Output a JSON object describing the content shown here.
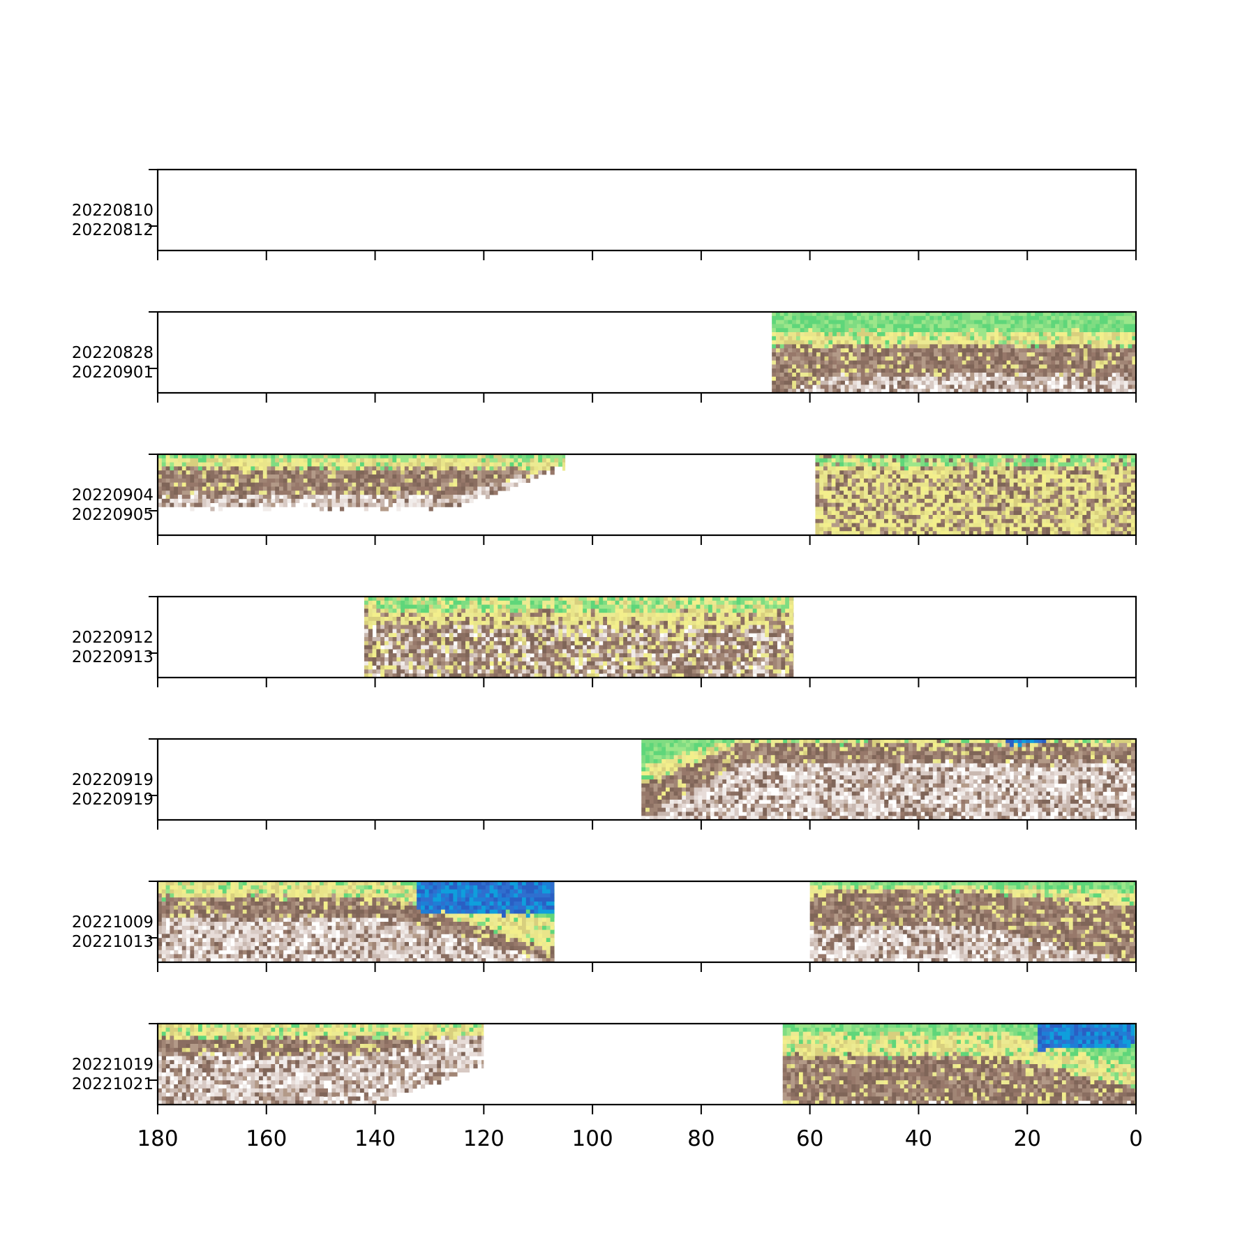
{
  "chart_data": {
    "type": "heatmap",
    "title": "",
    "xlabel": "",
    "ylabel": "",
    "xlim": [
      180,
      0
    ],
    "x_ticks": [
      180,
      160,
      140,
      120,
      100,
      80,
      60,
      40,
      20,
      0
    ],
    "x_tick_labels": [
      "180",
      "160",
      "140",
      "120",
      "100",
      "80",
      "60",
      "40",
      "20",
      "0"
    ],
    "grid": false,
    "colormap": "terrain",
    "panels": [
      {
        "id": "p1",
        "date_labels": [
          "20220810",
          "20220812"
        ],
        "segments": []
      },
      {
        "id": "p2",
        "date_labels": [
          "20220828",
          "20220901"
        ],
        "segments": [
          {
            "x_start": 67,
            "x_end": 0,
            "layers": {
              "green_top": 0.25,
              "yellow_to": 0.42,
              "brown_to": 0.78,
              "fade_to": 1.0
            },
            "ramp": {
              "x_start": 67,
              "x_end": 55,
              "brown_extra": 0.28,
              "fade_extra": 0.2
            },
            "blue": []
          }
        ]
      },
      {
        "id": "p3",
        "date_labels": [
          "20220904",
          "20220905"
        ],
        "segments": [
          {
            "x_start": 180,
            "x_end": 105,
            "layers": {
              "green_top": 0.04,
              "yellow_to": 0.18,
              "brown_to": 0.5,
              "fade_to": 0.66
            },
            "ramp": {
              "x_start": 125,
              "x_end": 105,
              "brown_extra": -0.38,
              "fade_extra": -0.5
            },
            "blue": []
          },
          {
            "x_start": 59,
            "x_end": 0,
            "layers": {
              "green_top": 0.15,
              "yellow_to": 1.0,
              "brown_to": 1.0,
              "fade_to": 1.0
            },
            "mix": "yellow-brown",
            "blue": []
          }
        ]
      },
      {
        "id": "p4",
        "date_labels": [
          "20220912",
          "20220913"
        ],
        "segments": [
          {
            "x_start": 142,
            "x_end": 63,
            "layers": {
              "green_top": 0.18,
              "yellow_to": 0.36,
              "brown_to": 1.0,
              "fade_to": 1.0
            },
            "mix": "brown-white",
            "blue": []
          }
        ]
      },
      {
        "id": "p5",
        "date_labels": [
          "20220919",
          "20220919"
        ],
        "segments": [
          {
            "x_start": 91,
            "x_end": 0,
            "layers": {
              "green_top": 0.33,
              "yellow_to": 0.6,
              "brown_to": 1.0,
              "fade_to": 1.0
            },
            "ramp": {
              "x_start": 91,
              "x_end": 73,
              "green_top": 0.0,
              "yellow_to": 0.05,
              "brown_to": 0.3,
              "fade_to": 1.0
            },
            "blue": [
              {
                "x_start": 24,
                "x_end": 16,
                "depth": 0.05
              }
            ]
          }
        ]
      },
      {
        "id": "p6",
        "date_labels": [
          "20221009",
          "20221013"
        ],
        "segments": [
          {
            "x_start": 180,
            "x_end": 107,
            "layers": {
              "green_top": 0.0,
              "yellow_to": 0.2,
              "brown_to": 0.45,
              "fade_to": 1.0
            },
            "ramp": {
              "x_start": 138,
              "x_end": 107,
              "green_top": 0.5,
              "yellow_to": 0.85,
              "brown_to": 1.0,
              "fade_to": 1.0
            },
            "blue": [
              {
                "x_start": 132,
                "x_end": 107,
                "depth": 0.4
              }
            ]
          },
          {
            "x_start": 60,
            "x_end": 0,
            "layers": {
              "green_top": 0.06,
              "yellow_to": 0.12,
              "brown_to": 0.55,
              "fade_to": 1.0
            },
            "ramp": {
              "x_start": 30,
              "x_end": 0,
              "green_top": 0.12,
              "yellow_to": 0.3,
              "brown_to": 1.0,
              "fade_to": 1.0
            },
            "blue": []
          }
        ]
      },
      {
        "id": "p7",
        "date_labels": [
          "20221019",
          "20221021"
        ],
        "segments": [
          {
            "x_start": 180,
            "x_end": 120,
            "layers": {
              "green_top": 0.0,
              "yellow_to": 0.18,
              "brown_to": 0.38,
              "fade_to": 1.0
            },
            "ramp": {
              "x_start": 140,
              "x_end": 120,
              "brown_extra": -0.3,
              "fade_extra": -0.5
            },
            "blue": []
          },
          {
            "x_start": 65,
            "x_end": 0,
            "layers": {
              "green_top": 0.12,
              "yellow_to": 0.4,
              "brown_to": 1.0,
              "fade_to": 1.0
            },
            "ramp": {
              "x_start": 25,
              "x_end": 0,
              "green_top": 0.55,
              "yellow_to": 0.8,
              "brown_to": 1.0,
              "fade_to": 1.0
            },
            "blue": [
              {
                "x_start": 18,
                "x_end": 0,
                "depth": 0.3
              }
            ]
          }
        ]
      }
    ]
  }
}
